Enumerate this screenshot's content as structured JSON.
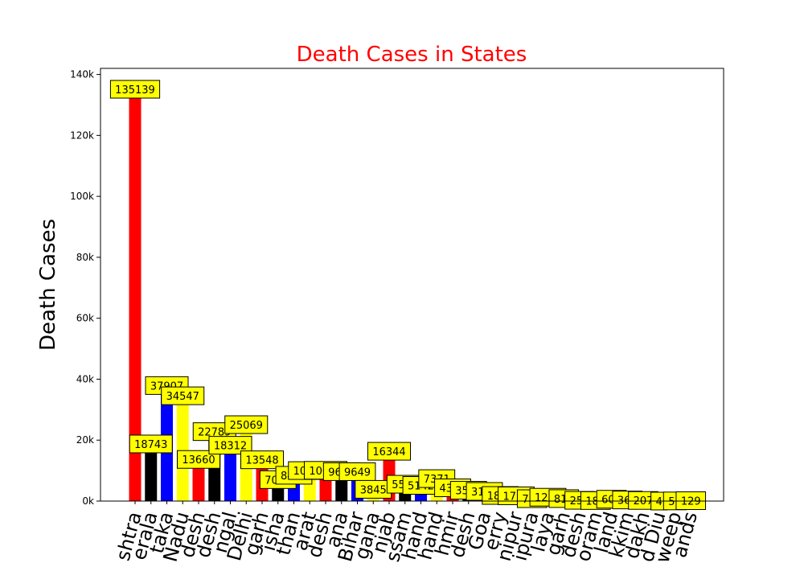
{
  "chart_data": {
    "type": "bar",
    "title": "Death Cases in States",
    "title_color": "#ff0000",
    "xlabel": "",
    "ylabel": "Death Cases",
    "ylim": [
      0,
      142000
    ],
    "yticks": [
      0,
      20000,
      40000,
      60000,
      80000,
      100000,
      120000,
      140000
    ],
    "ytick_labels": [
      "0k",
      "20k",
      "40k",
      "60k",
      "80k",
      "100k",
      "120k",
      "140k"
    ],
    "grid": false,
    "legend": "none",
    "bar_color_cycle": [
      "#ff0000",
      "#000000",
      "#0000ff",
      "#ffff00"
    ],
    "data_label_bg": "#ffff00",
    "categories": [
      "Maharashtra",
      "Kerala",
      "Karnataka",
      "Tamil Nadu",
      "Andhra Pradesh",
      "Uttar Pradesh",
      "West Bengal",
      "Delhi",
      "Chhattisgarh",
      "Odisha",
      "Rajasthan",
      "Gujarat",
      "Madhya Pradesh",
      "Haryana",
      "Bihar",
      "Telangana",
      "Punjab",
      "Assam",
      "Jharkhand",
      "Uttarakhand",
      "Jammu and Kashmir",
      "Himachal Pradesh",
      "Goa",
      "Puducherry",
      "Manipur",
      "Tripura",
      "Meghalaya",
      "Chandigarh",
      "Arunachal Pradesh",
      "Mizoram",
      "Nagaland",
      "Sikkim",
      "Ladakh",
      "Dadra and Nagar Haveli and Daman and Diu",
      "Lakshadweep",
      "Andaman and Nicobar Islands"
    ],
    "tick_labels_visible": [
      "shtra",
      "erala",
      "taka",
      "Nadu",
      "desh",
      "desh",
      "ngal",
      "Delhi",
      "garh",
      "isha",
      "than",
      "arat",
      "desh",
      "ana",
      "Bihar",
      "gana",
      "njab",
      "ssam",
      "hand",
      "hand",
      "hmir",
      "desh",
      "Goa",
      "erry",
      "nipur",
      "ipura",
      "laya",
      "garh",
      "desh",
      "oram",
      "land",
      "kkim",
      "dakh",
      "d Diu",
      "weep",
      "ands"
    ],
    "values": [
      135139,
      18743,
      37907,
      34547,
      13660,
      22789,
      18312,
      25069,
      13548,
      7036,
      8467,
      10012,
      10090,
      9663,
      9649,
      3845,
      16344,
      5530,
      5142,
      7371,
      4351,
      3543,
      3164,
      1839,
      1730,
      785,
      1263,
      811,
      250,
      180,
      600,
      363,
      207,
      4,
      51,
      129
    ],
    "data_labels": [
      "135139",
      "18743",
      "37907",
      "34547",
      "13660",
      "22789",
      "18312",
      "25069",
      "13548",
      "7036",
      "8467",
      "10012",
      "10090",
      "9663",
      "9649",
      "3845",
      "16344",
      "5530",
      "5142",
      "7371",
      "4351",
      "3543",
      "3164",
      "1839",
      "1730",
      "785",
      "1263",
      "811",
      "250",
      "180",
      "600",
      "363",
      "207",
      "4",
      "51",
      "129"
    ]
  }
}
